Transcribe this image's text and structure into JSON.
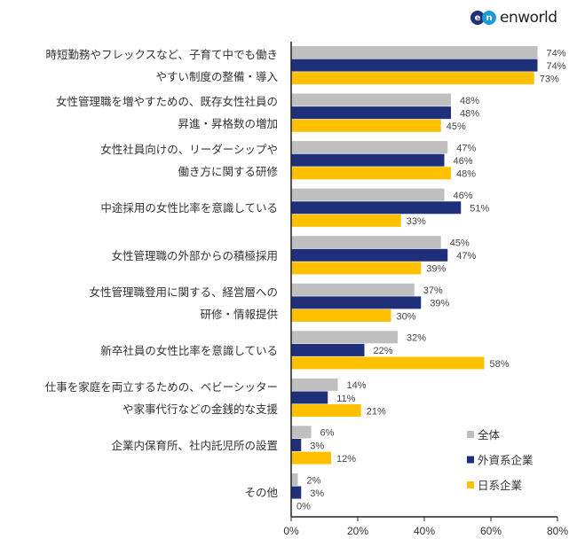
{
  "logo": {
    "text": "enworld",
    "mark": "en"
  },
  "chart_data": {
    "type": "bar",
    "orientation": "horizontal",
    "categories": [
      [
        "時短勤務やフレックスなど、子育て中でも働き",
        "やすい制度の整備・導入"
      ],
      [
        "女性管理職を増やすための、既存女性社員の",
        "昇進・昇格数の増加"
      ],
      [
        "女性社員向けの、リーダーシップや",
        "働き方に関する研修"
      ],
      [
        "中途採用の女性比率を意識している"
      ],
      [
        "女性管理職の外部からの積極採用"
      ],
      [
        "女性管理職登用に関する、経営層への",
        "研修・情報提供"
      ],
      [
        "新卒社員の女性比率を意識している"
      ],
      [
        "仕事を家庭を両立するための、ベビーシッター",
        "や家事代行などの金銭的な支援"
      ],
      [
        "企業内保育所、社内託児所の設置"
      ],
      [
        "その他"
      ]
    ],
    "series": [
      {
        "name": "全体",
        "color": "#BFBFBF",
        "values": [
          74,
          48,
          47,
          46,
          45,
          37,
          32,
          14,
          6,
          2
        ]
      },
      {
        "name": "外資系企業",
        "color": "#1F2F7A",
        "values": [
          74,
          48,
          46,
          51,
          47,
          39,
          22,
          11,
          3,
          3
        ]
      },
      {
        "name": "日系企業",
        "color": "#FFC000",
        "values": [
          73,
          45,
          48,
          33,
          39,
          30,
          58,
          21,
          12,
          0
        ]
      }
    ],
    "xlim": [
      0,
      80
    ],
    "xticks": [
      "0%",
      "20%",
      "40%",
      "60%",
      "80%"
    ],
    "value_suffix": "%",
    "grid": false,
    "legend_position": "bottom-right"
  }
}
